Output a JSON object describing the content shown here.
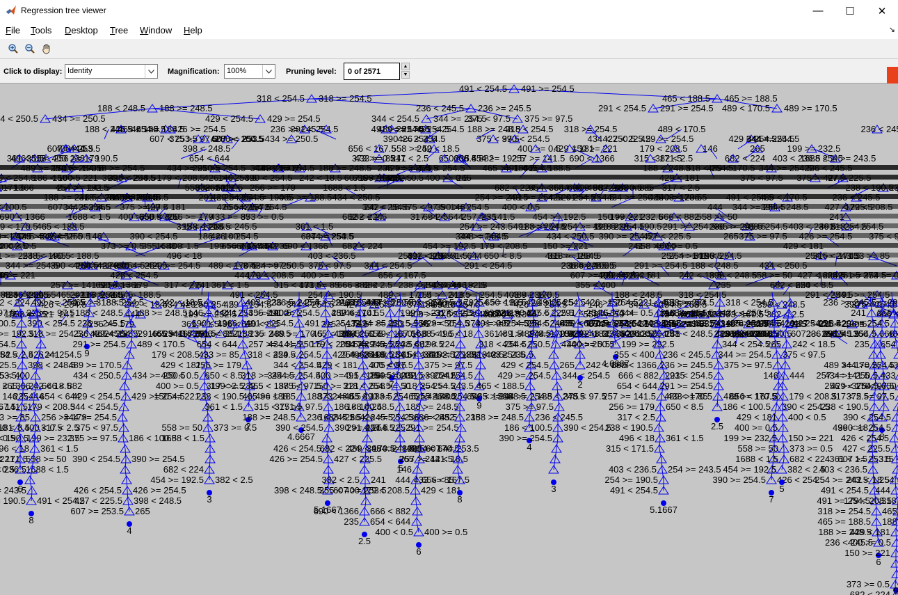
{
  "window": {
    "title": "Regression tree viewer",
    "minimize_glyph": "—",
    "maximize_glyph": "☐",
    "close_glyph": "✕"
  },
  "menu": {
    "items": [
      "File",
      "Tools",
      "Desktop",
      "Tree",
      "Window",
      "Help"
    ],
    "dock_glyph": "↘"
  },
  "toolbar": {
    "icons": [
      "zoom-in-icon",
      "zoom-out-icon",
      "pan-hand-icon"
    ]
  },
  "controls": {
    "click_to_display_label": "Click to display:",
    "click_to_display_value": "Identity",
    "magnification_label": "Magnification:",
    "magnification_value": "100%",
    "pruning_label": "Pruning level:",
    "pruning_value": "0 of 2571"
  },
  "colors": {
    "tree_blue": "#0000ee",
    "canvas_gray": "#c6c6c6",
    "panel_gray": "#f0f0f0",
    "badge_red": "#e8401a"
  },
  "tree": {
    "split_labels": [
      "491 < 254.5",
      "491 >= 254.5",
      "318 < 254.5",
      "318 >= 254.5",
      "465 < 188.5",
      "465 >= 188.5",
      "188 < 248.5",
      "188 >= 248.5",
      "236 < 245.5",
      "236 >= 245.5",
      "291 < 254.5",
      "291 >= 254.5",
      "489 < 170.5",
      "489 >= 170.5",
      "434 < 250.5",
      "434 >= 250.5",
      "429 < 254.5",
      "429 >= 254.5",
      "344 < 254.5",
      "344 >= 254.5",
      "375 < 97.5",
      "375 >= 97.5",
      "186 < 100.5",
      "390 < 254.5",
      "390 >= 254.5",
      "426 < 254.5",
      "426 >= 254.5",
      "427 < 225.5",
      "398 < 248.5",
      "607 >= 253.5",
      "265",
      "242 < 18.5",
      "146",
      "444",
      "656 < 167.5",
      "179 < 208.5",
      "429 < 181",
      "400 < 0.5",
      "400 >= 0.5",
      "199 >= 232.5",
      "150 >= 221",
      "558 >= 50",
      "373 >= 0.5",
      "1688 < 1.5",
      "682 < 224",
      "454 >= 192.5",
      "382 < 2.5",
      "241",
      "355 < 400",
      "690 < 1366",
      "666 < 882",
      "235",
      "654 < 644",
      "257 >= 141.5",
      "433 >= 85",
      "256 >= 179",
      "650 < 8.5",
      "317 < 2.5",
      "238 < 190.5",
      "496 < 18",
      "361 < 1.5",
      "315 < 171.5",
      "403 < 236.5",
      "254 >= 243.5",
      "254 >= 190.5"
    ],
    "leaf_values": [
      "6",
      "8",
      "9",
      "4",
      "3",
      "2",
      "4.6667",
      "5.1667",
      "2.5",
      "7",
      "5"
    ]
  }
}
